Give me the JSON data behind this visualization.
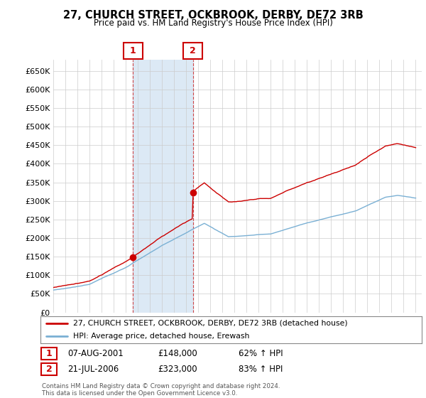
{
  "title": "27, CHURCH STREET, OCKBROOK, DERBY, DE72 3RB",
  "subtitle": "Price paid vs. HM Land Registry's House Price Index (HPI)",
  "ylim": [
    0,
    680000
  ],
  "yticks": [
    0,
    50000,
    100000,
    150000,
    200000,
    250000,
    300000,
    350000,
    400000,
    450000,
    500000,
    550000,
    600000,
    650000
  ],
  "ytick_labels": [
    "£0",
    "£50K",
    "£100K",
    "£150K",
    "£200K",
    "£250K",
    "£300K",
    "£350K",
    "£400K",
    "£450K",
    "£500K",
    "£550K",
    "£600K",
    "£650K"
  ],
  "plot_bg_color": "#ffffff",
  "shade_color": "#dce9f5",
  "grid_color": "#cccccc",
  "legend_line1": "27, CHURCH STREET, OCKBROOK, DERBY, DE72 3RB (detached house)",
  "legend_line2": "HPI: Average price, detached house, Erewash",
  "line1_color": "#cc0000",
  "line2_color": "#7ab0d4",
  "annotation1_label": "1",
  "annotation1_date": "07-AUG-2001",
  "annotation1_price": "£148,000",
  "annotation1_hpi": "62% ↑ HPI",
  "annotation2_label": "2",
  "annotation2_date": "21-JUL-2006",
  "annotation2_price": "£323,000",
  "annotation2_hpi": "83% ↑ HPI",
  "footer": "Contains HM Land Registry data © Crown copyright and database right 2024.\nThis data is licensed under the Open Government Licence v3.0.",
  "sale1_x": 2001.6,
  "sale1_y": 148000,
  "sale2_x": 2006.55,
  "sale2_y": 323000,
  "xmin": 1995,
  "xmax": 2025.5
}
